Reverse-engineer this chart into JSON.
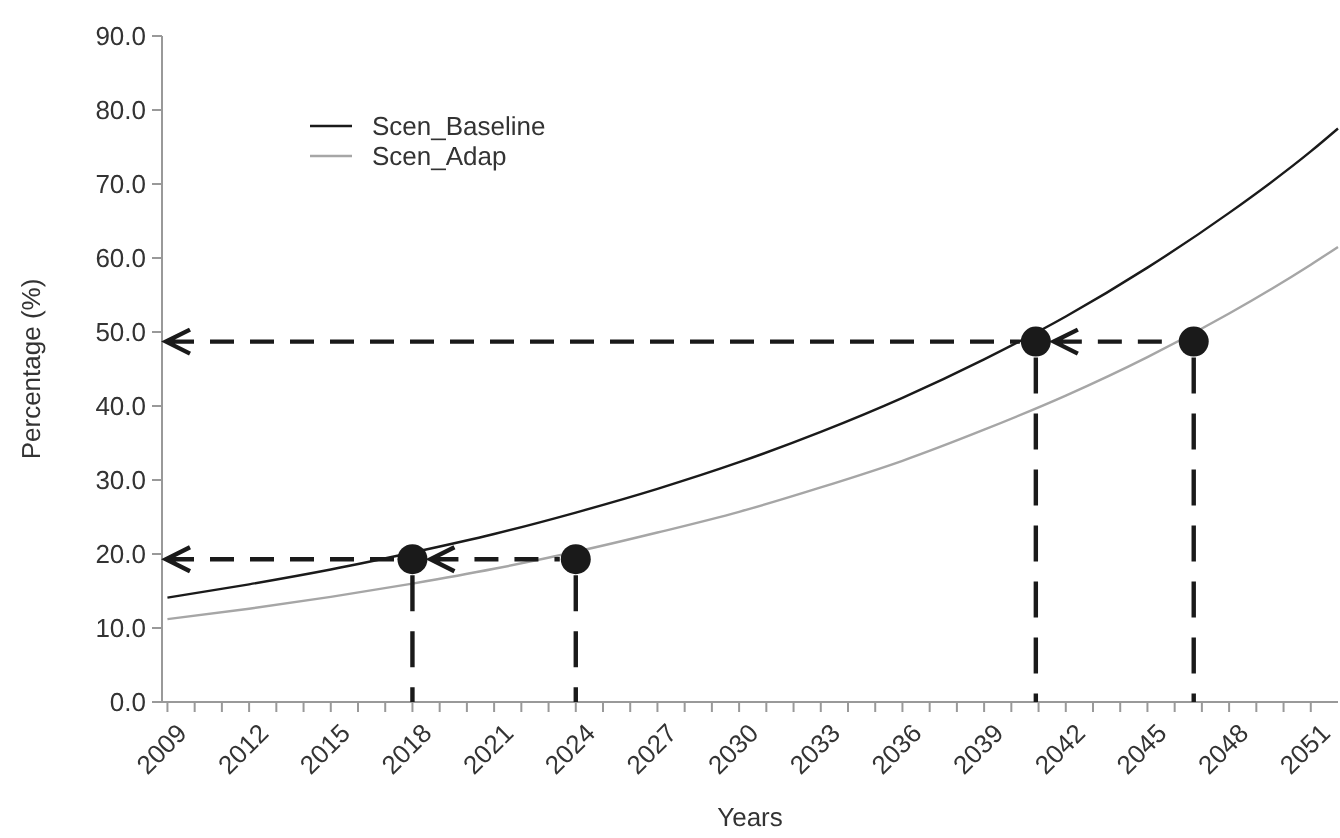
{
  "chart_data": {
    "type": "line",
    "xlabel": "Years",
    "ylabel": "Percentage (%)",
    "xlim": [
      2008.8,
      2052
    ],
    "ylim": [
      0,
      90
    ],
    "xticks": [
      2009,
      {
        "value": 2010,
        "label": null
      },
      {
        "value": 2011,
        "label": null
      },
      2012,
      {
        "value": 2013,
        "label": null
      },
      {
        "value": 2014,
        "label": null
      },
      2015,
      {
        "value": 2016,
        "label": null
      },
      {
        "value": 2017,
        "label": null
      },
      2018,
      {
        "value": 2019,
        "label": null
      },
      {
        "value": 2020,
        "label": null
      },
      2021,
      {
        "value": 2022,
        "label": null
      },
      {
        "value": 2023,
        "label": null
      },
      2024,
      {
        "value": 2025,
        "label": null
      },
      {
        "value": 2026,
        "label": null
      },
      2027,
      {
        "value": 2028,
        "label": null
      },
      {
        "value": 2029,
        "label": null
      },
      2030,
      {
        "value": 2031,
        "label": null
      },
      {
        "value": 2032,
        "label": null
      },
      2033,
      {
        "value": 2034,
        "label": null
      },
      {
        "value": 2035,
        "label": null
      },
      2036,
      {
        "value": 2037,
        "label": null
      },
      {
        "value": 2038,
        "label": null
      },
      2039,
      {
        "value": 2040,
        "label": null
      },
      {
        "value": 2041,
        "label": null
      },
      2042,
      {
        "value": 2043,
        "label": null
      },
      {
        "value": 2044,
        "label": null
      },
      2045,
      {
        "value": 2046,
        "label": null
      },
      {
        "value": 2047,
        "label": null
      },
      2048,
      {
        "value": 2049,
        "label": null
      },
      {
        "value": 2050,
        "label": null
      },
      2051
    ],
    "yticks": [
      {
        "value": 0,
        "label": "0.0"
      },
      {
        "value": 10,
        "label": "10.0"
      },
      {
        "value": 20,
        "label": "20.0"
      },
      {
        "value": 30,
        "label": "30.0"
      },
      {
        "value": 40,
        "label": "40.0"
      },
      {
        "value": 50,
        "label": "50.0"
      },
      {
        "value": 60,
        "label": "60.0"
      },
      {
        "value": 70,
        "label": "70.0"
      },
      {
        "value": 80,
        "label": "80.0"
      },
      {
        "value": 90,
        "label": "90.0"
      }
    ],
    "x": [
      2009,
      2012,
      2015,
      2018,
      2021,
      2024,
      2027,
      2030,
      2033,
      2036,
      2039,
      2042,
      2045,
      2048,
      2051,
      2052
    ],
    "legend": "top left",
    "grid": false,
    "marker": "none",
    "line_style": "solid",
    "series": [
      {
        "name": "Scen_Baseline",
        "color": "#1a1a1a",
        "values": [
          14.1,
          15.9,
          17.9,
          20.2,
          22.7,
          25.6,
          28.8,
          32.4,
          36.5,
          41.1,
          46.3,
          52.1,
          58.7,
          66.1,
          74.4,
          77.5
        ]
      },
      {
        "name": "Scen_Adap",
        "color": "#a6a6a6",
        "values": [
          11.2,
          12.6,
          14.2,
          16.0,
          18.0,
          20.3,
          22.9,
          25.7,
          29.0,
          32.6,
          36.8,
          41.4,
          46.6,
          52.5,
          59.1,
          61.5
        ]
      },
      {
        "type": "scatter",
        "marker": "circle",
        "color": "#1a1a1a",
        "x": [
          2018,
          2024,
          2040.9,
          2046.7
        ],
        "values": [
          19.3,
          19.3,
          48.7,
          48.7
        ]
      }
    ]
  }
}
